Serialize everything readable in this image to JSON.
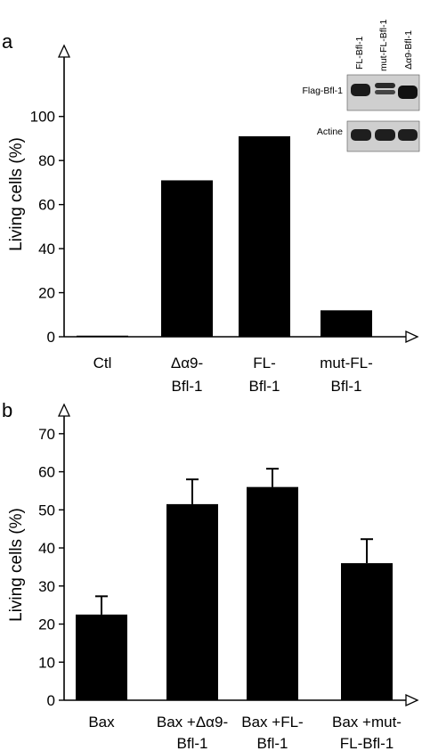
{
  "chart_data": [
    {
      "type": "bar",
      "panel_label": "a",
      "categories": [
        [
          "Ctl"
        ],
        [
          "Δα9-",
          "Bfl-1"
        ],
        [
          "FL-",
          "Bfl-1"
        ],
        [
          "mut-FL-",
          "Bfl-1"
        ]
      ],
      "values": [
        0.5,
        71,
        91,
        12
      ],
      "xlabel": "",
      "ylabel": "Living cells (%)",
      "ylim": [
        0,
        110
      ],
      "yticks": [
        0,
        20,
        40,
        60,
        80,
        100
      ],
      "grid": false,
      "bar_color": "#000000",
      "inset": {
        "lane_labels": [
          "FL-Bfl-1",
          "mut-FL-Bfl-1",
          "Δα9-Bfl-1"
        ],
        "row_labels": [
          "Flag-Bfl-1",
          "Actine"
        ]
      }
    },
    {
      "type": "bar",
      "panel_label": "b",
      "categories": [
        [
          "Bax"
        ],
        [
          "Bax +Δα9-",
          "Bfl-1"
        ],
        [
          "Bax +FL-",
          "Bfl-1"
        ],
        [
          "Bax +mut-",
          "FL-Bfl-1"
        ]
      ],
      "values": [
        22.5,
        51.5,
        56,
        36
      ],
      "errors": [
        4.8,
        6.5,
        4.8,
        6.3
      ],
      "xlabel": "",
      "ylabel": "Living cells (%)",
      "ylim": [
        0,
        73
      ],
      "yticks": [
        0,
        10,
        20,
        30,
        40,
        50,
        60,
        70
      ],
      "grid": false,
      "bar_color": "#000000"
    }
  ]
}
